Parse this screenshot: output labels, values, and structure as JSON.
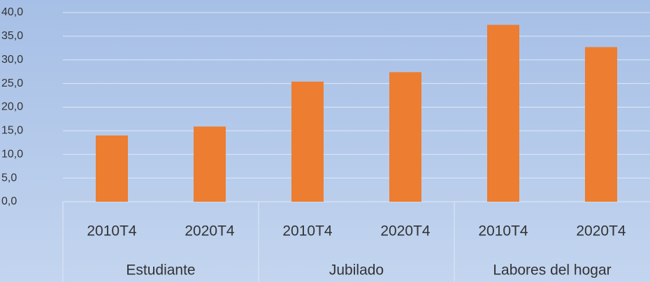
{
  "chart_data": {
    "type": "bar",
    "color": "#ed7d31",
    "groups": [
      {
        "label": "Estudiante",
        "categories": [
          "2010T4",
          "2020T4"
        ],
        "values": [
          14.0,
          15.9
        ]
      },
      {
        "label": "Jubilado",
        "categories": [
          "2010T4",
          "2020T4"
        ],
        "values": [
          25.4,
          27.4
        ]
      },
      {
        "label": "Labores del hogar",
        "categories": [
          "2010T4",
          "2020T4"
        ],
        "values": [
          37.4,
          32.7
        ]
      }
    ],
    "ylim": [
      0,
      40
    ],
    "yticks": [
      {
        "value": 0,
        "label": "0,0"
      },
      {
        "value": 5,
        "label": "5,0"
      },
      {
        "value": 10,
        "label": "10,0"
      },
      {
        "value": 15,
        "label": "15,0"
      },
      {
        "value": 20,
        "label": "20,0"
      },
      {
        "value": 25,
        "label": "25,0"
      },
      {
        "value": 30,
        "label": "30,0"
      },
      {
        "value": 35,
        "label": "35,0"
      },
      {
        "value": 40,
        "label": "40,0"
      }
    ],
    "grid": true
  }
}
